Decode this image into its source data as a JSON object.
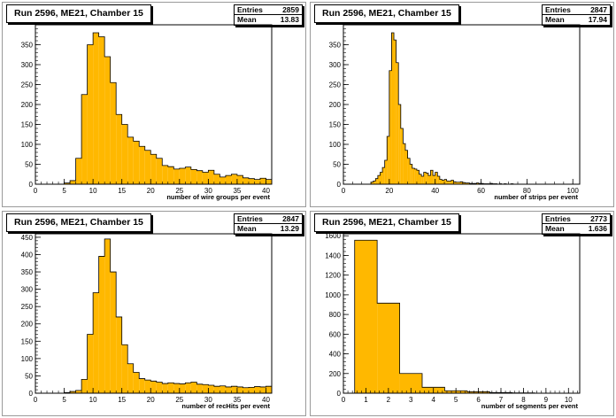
{
  "chart_data": [
    {
      "type": "bar",
      "title": "Run 2596, ME21, Chamber 15",
      "stats": {
        "entries_label": "Entries",
        "entries": "2859",
        "mean_label": "Mean",
        "mean": "13.83"
      },
      "xlabel": "number of wire groups per event",
      "ylabel": "",
      "xlim": [
        0,
        41
      ],
      "ylim": [
        0,
        400
      ],
      "xticks": [
        0,
        5,
        10,
        15,
        20,
        25,
        30,
        35,
        40
      ],
      "yticks": [
        0,
        50,
        100,
        150,
        200,
        250,
        300,
        350
      ],
      "bin_start": 0,
      "bin_width": 1,
      "values": [
        0,
        0,
        0,
        0,
        0,
        3,
        9,
        65,
        225,
        350,
        380,
        370,
        320,
        255,
        175,
        150,
        118,
        108,
        95,
        85,
        75,
        65,
        47,
        44,
        38,
        40,
        43,
        37,
        34,
        30,
        35,
        25,
        18,
        22,
        25,
        22,
        16,
        14,
        12,
        15,
        12
      ]
    },
    {
      "type": "bar",
      "title": "Run 2596, ME21, Chamber 15",
      "stats": {
        "entries_label": "Entries",
        "entries": "2847",
        "mean_label": "Mean",
        "mean": "17.94"
      },
      "xlabel": "number of strips per event",
      "ylabel": "",
      "xlim": [
        0,
        103
      ],
      "ylim": [
        0,
        400
      ],
      "xticks": [
        0,
        20,
        40,
        60,
        80,
        100
      ],
      "yticks": [
        0,
        50,
        100,
        150,
        200,
        250,
        300,
        350
      ],
      "bin_start": 0,
      "bin_width": 1,
      "values": [
        0,
        0,
        0,
        0,
        0,
        0,
        0,
        0,
        0,
        0,
        0,
        0,
        5,
        8,
        14,
        22,
        30,
        42,
        60,
        120,
        285,
        380,
        362,
        305,
        200,
        140,
        102,
        85,
        65,
        50,
        40,
        38,
        35,
        25,
        20,
        30,
        28,
        22,
        35,
        22,
        30,
        20,
        12,
        10,
        12,
        8,
        8,
        10,
        6,
        5,
        5,
        6,
        4,
        3,
        3,
        2,
        2,
        2,
        3,
        2,
        2,
        1,
        1,
        1,
        2,
        1,
        1,
        0,
        1,
        0,
        1,
        0,
        0,
        1,
        0,
        0,
        0,
        0,
        0,
        0,
        0,
        0,
        0,
        0,
        0,
        0,
        0,
        0,
        0,
        0,
        0,
        0,
        0,
        0,
        0,
        0,
        0,
        0,
        0,
        0
      ]
    },
    {
      "type": "bar",
      "title": "Run 2596, ME21, Chamber 15",
      "stats": {
        "entries_label": "Entries",
        "entries": "2847",
        "mean_label": "Mean",
        "mean": "13.29"
      },
      "xlabel": "number of recHits per event",
      "ylabel": "",
      "xlim": [
        0,
        41
      ],
      "ylim": [
        0,
        460
      ],
      "xticks": [
        0,
        5,
        10,
        15,
        20,
        25,
        30,
        35,
        40
      ],
      "yticks": [
        0,
        50,
        100,
        150,
        200,
        250,
        300,
        350,
        400,
        450
      ],
      "bin_start": 0,
      "bin_width": 1,
      "values": [
        0,
        0,
        0,
        0,
        0,
        2,
        5,
        8,
        40,
        170,
        290,
        395,
        445,
        350,
        220,
        140,
        85,
        60,
        42,
        38,
        35,
        32,
        28,
        30,
        28,
        27,
        30,
        32,
        26,
        25,
        23,
        20,
        21,
        18,
        20,
        18,
        16,
        17,
        19,
        18,
        20
      ]
    },
    {
      "type": "bar",
      "title": "Run 2596, ME21, Chamber 15",
      "stats": {
        "entries_label": "Entries",
        "entries": "2773",
        "mean_label": "Mean",
        "mean": "1.636"
      },
      "xlabel": "number of segments per event",
      "ylabel": "",
      "xlim": [
        0,
        10.5
      ],
      "ylim": [
        0,
        1620
      ],
      "xticks": [
        0,
        1,
        2,
        3,
        4,
        5,
        6,
        7,
        8,
        9,
        10
      ],
      "yticks": [
        0,
        200,
        400,
        600,
        800,
        1000,
        1200,
        1400,
        1600
      ],
      "bin_start": 0.5,
      "bin_width": 1,
      "values": [
        1555,
        915,
        200,
        60,
        25,
        15,
        6,
        3,
        1,
        1
      ]
    }
  ],
  "colors": {
    "fill": "#ffb800",
    "outline": "#000000",
    "frame": "#000000"
  }
}
